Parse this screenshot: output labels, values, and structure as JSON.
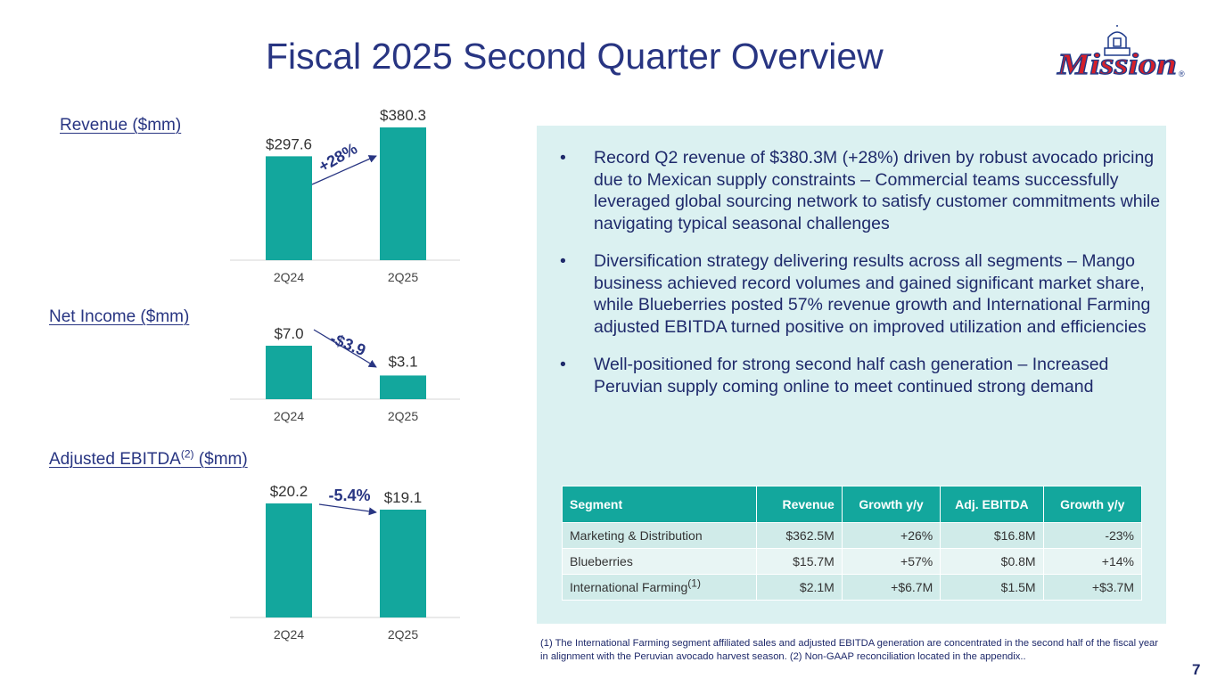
{
  "title": "Fiscal 2025 Second Quarter Overview",
  "logo": {
    "text": "Mission",
    "registered": "®"
  },
  "chart_data": [
    {
      "type": "bar",
      "title": "Revenue ($mm)",
      "categories": [
        "2Q24",
        "2Q25"
      ],
      "values": [
        297.6,
        380.3
      ],
      "value_labels": [
        "$297.6",
        "$380.3"
      ],
      "change_label": "+28%",
      "ylim": [
        0,
        380.3
      ]
    },
    {
      "type": "bar",
      "title": "Net Income ($mm)",
      "categories": [
        "2Q24",
        "2Q25"
      ],
      "values": [
        7.0,
        3.1
      ],
      "value_labels": [
        "$7.0",
        "$3.1"
      ],
      "change_label": "-$3.9",
      "ylim": [
        0,
        7.0
      ]
    },
    {
      "type": "bar",
      "title": "Adjusted EBITDA",
      "title_sup": "(2)",
      "title_suffix": " ($mm)",
      "categories": [
        "2Q24",
        "2Q25"
      ],
      "values": [
        20.2,
        19.1
      ],
      "value_labels": [
        "$20.2",
        "$19.1"
      ],
      "change_label": "-5.4%",
      "ylim": [
        0,
        20.2
      ]
    }
  ],
  "bullets": [
    "Record Q2 revenue of $380.3M (+28%) driven by robust avocado pricing due to Mexican supply constraints – Commercial teams successfully leveraged global sourcing network to satisfy customer commitments while navigating typical seasonal challenges",
    "Diversification strategy delivering results across all segments – Mango business achieved record volumes and gained significant market share, while Blueberries posted 57% revenue growth and International Farming adjusted EBITDA turned positive on improved utilization and efficiencies",
    "Well-positioned for strong second half cash generation – Increased Peruvian supply coming online to meet continued strong demand"
  ],
  "table": {
    "headers": [
      "Segment",
      "Revenue",
      "Growth y/y",
      "Adj. EBITDA",
      "Growth y/y"
    ],
    "rows": [
      {
        "segment": "Marketing & Distribution",
        "sup": "",
        "revenue": "$362.5M",
        "growth": "+26%",
        "ebitda": "$16.8M",
        "ebitda_growth": "-23%"
      },
      {
        "segment": "Blueberries",
        "sup": "",
        "revenue": "$15.7M",
        "growth": "+57%",
        "ebitda": "$0.8M",
        "ebitda_growth": "+14%"
      },
      {
        "segment": "International Farming",
        "sup": "(1)",
        "revenue": "$2.1M",
        "growth": "+$6.7M",
        "ebitda": "$1.5M",
        "ebitda_growth": "+$3.7M"
      }
    ]
  },
  "footnote": "(1) The International Farming segment affiliated sales and adjusted EBITDA generation are concentrated in the second half of the fiscal year in alignment with the Peruvian avocado harvest season. (2) Non-GAAP reconciliation located in the appendix..",
  "page_number": "7",
  "colors": {
    "bar": "#13a79d",
    "title": "#283582",
    "panel": "#dbf1f1",
    "logo_red": "#d4202b"
  }
}
